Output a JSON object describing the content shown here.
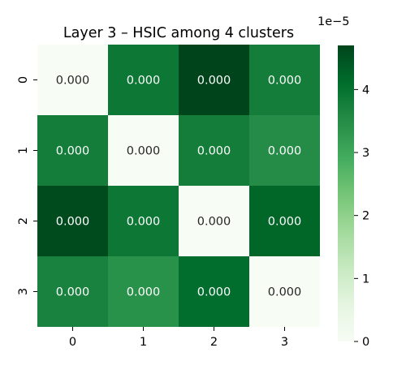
{
  "chart_data": {
    "type": "heatmap",
    "title": "Layer 3 – HSIC among 4 clusters",
    "x_tick_labels": [
      "0",
      "1",
      "2",
      "3"
    ],
    "y_tick_labels": [
      "0",
      "1",
      "2",
      "3"
    ],
    "matrix": [
      [
        0.0,
        3.9e-05,
        4.7e-05,
        3.8e-05
      ],
      [
        3.8e-05,
        0.0,
        3.8e-05,
        3.5e-05
      ],
      [
        4.6e-05,
        3.9e-05,
        0.0,
        4.2e-05
      ],
      [
        3.7e-05,
        3.4e-05,
        4.1e-05,
        0.0
      ]
    ],
    "annotations": [
      [
        "0.000",
        "0.000",
        "0.000",
        "0.000"
      ],
      [
        "0.000",
        "0.000",
        "0.000",
        "0.000"
      ],
      [
        "0.000",
        "0.000",
        "0.000",
        "0.000"
      ],
      [
        "0.000",
        "0.000",
        "0.000",
        "0.000"
      ]
    ],
    "colorbar": {
      "colormap": "Greens",
      "range": [
        0,
        4.7e-05
      ],
      "ticks": [
        0,
        1,
        2,
        3,
        4
      ],
      "tick_labels": [
        "0",
        "1",
        "2",
        "3",
        "4"
      ],
      "offset_text": "1e−5"
    },
    "colors": {
      "low": "#f7fcf5",
      "high": "#00441b",
      "annot_on_light": "#262626",
      "annot_on_dark": "#ffffff"
    }
  }
}
